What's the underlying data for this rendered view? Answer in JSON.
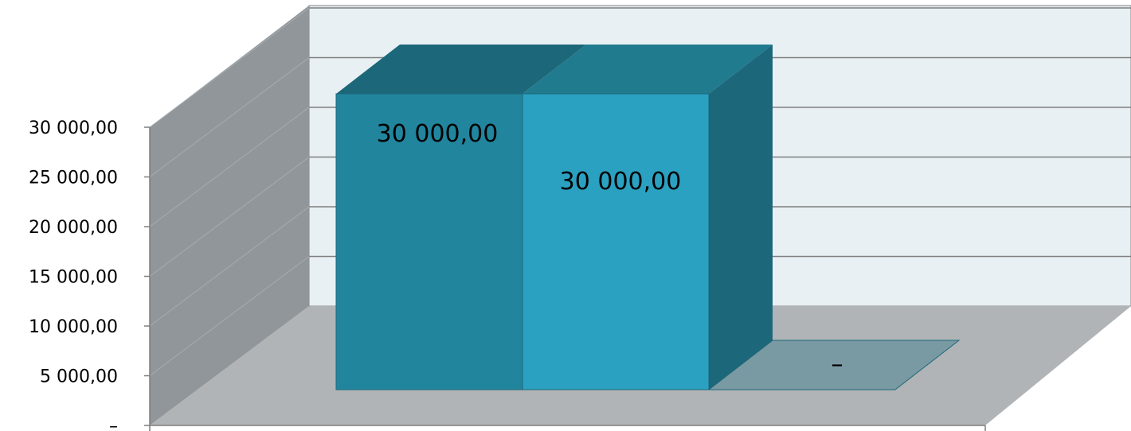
{
  "chart_data": {
    "type": "bar",
    "categories": [
      "",
      "",
      ""
    ],
    "values": [
      30000,
      30000,
      0
    ],
    "data_labels": [
      "30 000,00",
      "30 000,00",
      "–"
    ],
    "y_ticks": [
      {
        "value": 0,
        "label": "–"
      },
      {
        "value": 5000,
        "label": "5 000,00"
      },
      {
        "value": 10000,
        "label": "10 000,00"
      },
      {
        "value": 15000,
        "label": "15 000,00"
      },
      {
        "value": 20000,
        "label": "20 000,00"
      },
      {
        "value": 25000,
        "label": "25 000,00"
      },
      {
        "value": 30000,
        "label": "30 000,00"
      }
    ],
    "ylim": [
      0,
      30000
    ],
    "title": "",
    "xlabel": "",
    "ylabel": "",
    "grid": true,
    "legend": "none",
    "style": "3d-column",
    "colors": {
      "bar_1_front": "#22859E",
      "bar_1_top": "#1C6779",
      "bar_2_front": "#2BA1C1",
      "bar_2_top": "#217B8E",
      "bar_side": "#1C6779",
      "zero_bar": "#7A9AA3",
      "back_wall": "#E8F0F4",
      "side_wall": "#90969A",
      "floor": "#B0B4B7",
      "gridline": "#7F7F7F"
    }
  }
}
